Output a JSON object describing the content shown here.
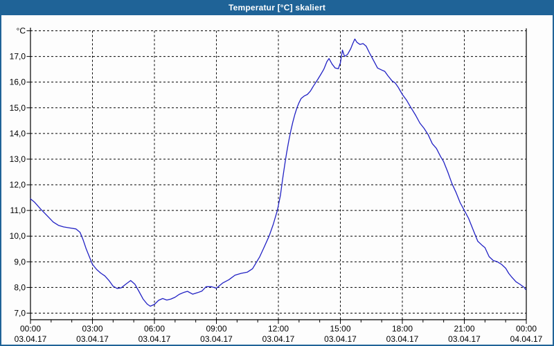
{
  "window": {
    "title": "Temperatur [°C] skaliert",
    "titlebar_color": "#1f6397",
    "title_text_color": "#ffffff",
    "border_color": "#1f6397",
    "background_color": "#fdfdfd"
  },
  "chart_data": {
    "type": "line",
    "title": "Temperatur [°C] skaliert",
    "grid": "dashed",
    "plot_background": "#fdfdfd",
    "axis_color": "#000000",
    "y_axis": {
      "unit_label": "°C",
      "min": 7.0,
      "max": 18.0,
      "gridline_step": 1.0,
      "ticks": [
        {
          "value": 17,
          "label": "17,0"
        },
        {
          "value": 16,
          "label": "16,0"
        },
        {
          "value": 15,
          "label": "15,0"
        },
        {
          "value": 14,
          "label": "14,0"
        },
        {
          "value": 13,
          "label": "13,0"
        },
        {
          "value": 12,
          "label": "12,0"
        },
        {
          "value": 11,
          "label": "11,0"
        },
        {
          "value": 10,
          "label": "10,0"
        },
        {
          "value": 9,
          "label": "9,0"
        },
        {
          "value": 8,
          "label": "8,0"
        },
        {
          "value": 7,
          "label": "7,0"
        }
      ]
    },
    "x_axis": {
      "range_hours": [
        0,
        24
      ],
      "major_tick_hours": 3,
      "minor_tick_hours": 1,
      "ticks": [
        {
          "hour": 0,
          "time": "00:00",
          "date": "03.04.17"
        },
        {
          "hour": 3,
          "time": "03:00",
          "date": "03.04.17"
        },
        {
          "hour": 6,
          "time": "06:00",
          "date": "03.04.17"
        },
        {
          "hour": 9,
          "time": "09:00",
          "date": "03.04.17"
        },
        {
          "hour": 12,
          "time": "12:00",
          "date": "03.04.17"
        },
        {
          "hour": 15,
          "time": "15:00",
          "date": "03.04.17"
        },
        {
          "hour": 18,
          "time": "18:00",
          "date": "03.04.17"
        },
        {
          "hour": 21,
          "time": "21:00",
          "date": "03.04.17"
        },
        {
          "hour": 24,
          "time": "00:00",
          "date": "04.04.17"
        }
      ]
    },
    "series": [
      {
        "name": "Temperatur",
        "color": "#2121c4",
        "points": [
          [
            0.0,
            11.45
          ],
          [
            0.2,
            11.32
          ],
          [
            0.5,
            11.05
          ],
          [
            0.8,
            10.8
          ],
          [
            1.1,
            10.55
          ],
          [
            1.35,
            10.42
          ],
          [
            1.6,
            10.36
          ],
          [
            1.9,
            10.32
          ],
          [
            2.2,
            10.28
          ],
          [
            2.4,
            10.15
          ],
          [
            2.55,
            9.85
          ],
          [
            2.7,
            9.5
          ],
          [
            2.85,
            9.2
          ],
          [
            3.0,
            8.9
          ],
          [
            3.2,
            8.7
          ],
          [
            3.4,
            8.56
          ],
          [
            3.6,
            8.45
          ],
          [
            3.8,
            8.27
          ],
          [
            4.0,
            8.05
          ],
          [
            4.2,
            7.96
          ],
          [
            4.4,
            7.99
          ],
          [
            4.6,
            8.12
          ],
          [
            4.85,
            8.27
          ],
          [
            5.05,
            8.13
          ],
          [
            5.25,
            7.85
          ],
          [
            5.45,
            7.55
          ],
          [
            5.65,
            7.35
          ],
          [
            5.8,
            7.27
          ],
          [
            6.0,
            7.34
          ],
          [
            6.2,
            7.5
          ],
          [
            6.4,
            7.57
          ],
          [
            6.6,
            7.51
          ],
          [
            6.8,
            7.55
          ],
          [
            7.0,
            7.62
          ],
          [
            7.2,
            7.73
          ],
          [
            7.4,
            7.8
          ],
          [
            7.6,
            7.85
          ],
          [
            7.85,
            7.74
          ],
          [
            8.1,
            7.8
          ],
          [
            8.3,
            7.86
          ],
          [
            8.5,
            8.03
          ],
          [
            8.75,
            8.03
          ],
          [
            9.0,
            7.97
          ],
          [
            9.3,
            8.17
          ],
          [
            9.6,
            8.3
          ],
          [
            9.9,
            8.48
          ],
          [
            10.2,
            8.55
          ],
          [
            10.5,
            8.6
          ],
          [
            10.75,
            8.73
          ],
          [
            10.95,
            9.0
          ],
          [
            11.1,
            9.2
          ],
          [
            11.3,
            9.55
          ],
          [
            11.55,
            10.0
          ],
          [
            11.75,
            10.45
          ],
          [
            11.95,
            11.0
          ],
          [
            12.1,
            11.6
          ],
          [
            12.2,
            12.2
          ],
          [
            12.3,
            12.75
          ],
          [
            12.4,
            13.25
          ],
          [
            12.5,
            13.7
          ],
          [
            12.6,
            14.1
          ],
          [
            12.7,
            14.45
          ],
          [
            12.8,
            14.75
          ],
          [
            12.9,
            15.0
          ],
          [
            13.0,
            15.2
          ],
          [
            13.1,
            15.36
          ],
          [
            13.25,
            15.46
          ],
          [
            13.4,
            15.52
          ],
          [
            13.55,
            15.65
          ],
          [
            13.7,
            15.85
          ],
          [
            13.9,
            16.1
          ],
          [
            14.05,
            16.3
          ],
          [
            14.2,
            16.5
          ],
          [
            14.35,
            16.8
          ],
          [
            14.45,
            16.92
          ],
          [
            14.6,
            16.7
          ],
          [
            14.75,
            16.55
          ],
          [
            14.9,
            16.52
          ],
          [
            15.0,
            16.75
          ],
          [
            15.1,
            17.25
          ],
          [
            15.2,
            17.0
          ],
          [
            15.35,
            17.08
          ],
          [
            15.5,
            17.3
          ],
          [
            15.6,
            17.5
          ],
          [
            15.7,
            17.68
          ],
          [
            15.8,
            17.55
          ],
          [
            15.95,
            17.47
          ],
          [
            16.1,
            17.5
          ],
          [
            16.25,
            17.4
          ],
          [
            16.4,
            17.15
          ],
          [
            16.5,
            17.0
          ],
          [
            16.65,
            16.78
          ],
          [
            16.8,
            16.55
          ],
          [
            17.0,
            16.47
          ],
          [
            17.15,
            16.42
          ],
          [
            17.3,
            16.25
          ],
          [
            17.5,
            16.05
          ],
          [
            17.65,
            15.97
          ],
          [
            17.8,
            15.8
          ],
          [
            18.0,
            15.52
          ],
          [
            18.2,
            15.3
          ],
          [
            18.4,
            15.03
          ],
          [
            18.65,
            14.7
          ],
          [
            18.85,
            14.4
          ],
          [
            19.05,
            14.2
          ],
          [
            19.25,
            13.95
          ],
          [
            19.45,
            13.6
          ],
          [
            19.65,
            13.42
          ],
          [
            19.85,
            13.1
          ],
          [
            20.0,
            12.9
          ],
          [
            20.2,
            12.5
          ],
          [
            20.4,
            12.05
          ],
          [
            20.6,
            11.7
          ],
          [
            20.8,
            11.3
          ],
          [
            21.0,
            11.0
          ],
          [
            21.2,
            10.7
          ],
          [
            21.45,
            10.2
          ],
          [
            21.65,
            9.8
          ],
          [
            21.85,
            9.65
          ],
          [
            22.0,
            9.55
          ],
          [
            22.2,
            9.2
          ],
          [
            22.4,
            9.05
          ],
          [
            22.6,
            9.0
          ],
          [
            22.8,
            8.9
          ],
          [
            23.0,
            8.75
          ],
          [
            23.15,
            8.55
          ],
          [
            23.3,
            8.4
          ],
          [
            23.5,
            8.22
          ],
          [
            23.7,
            8.12
          ],
          [
            23.9,
            8.0
          ],
          [
            23.97,
            7.92
          ]
        ]
      }
    ]
  }
}
